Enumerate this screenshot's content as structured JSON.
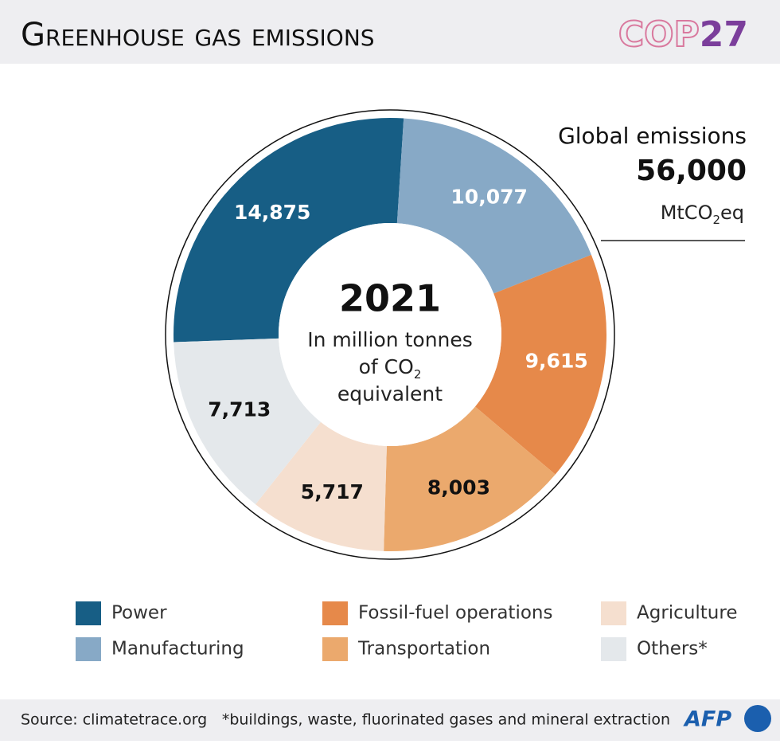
{
  "chart_data": {
    "type": "pie",
    "title": "Greenhouse gas emissions",
    "logo": [
      "COP",
      "27"
    ],
    "center_title": "2021",
    "center_text": [
      "In million tonnes",
      "of CO",
      "2",
      "equivalent"
    ],
    "total_title": "Global emissions",
    "total": {
      "value": 56000,
      "label": "56,000"
    },
    "total_unit": [
      "MtCO",
      "2",
      "eq"
    ],
    "categories": [
      "Power",
      "Manufacturing",
      "Fossil-fuel operations",
      "Transportation",
      "Agriculture",
      "Others*"
    ],
    "values": [
      14875,
      10077,
      9615,
      8003,
      5717,
      7713
    ],
    "value_labels": [
      "14,875",
      "10,077",
      "9,615",
      "8,003",
      "5,717",
      "7,713"
    ],
    "colors": [
      "#175e85",
      "#87a9c6",
      "#e6894a",
      "#eba96d",
      "#f5dfcf",
      "#e4e8eb"
    ],
    "source": "Source: climatetrace.org",
    "note": "*buildings, waste, fluorinated gases and mineral extraction",
    "credit": "AFP"
  }
}
